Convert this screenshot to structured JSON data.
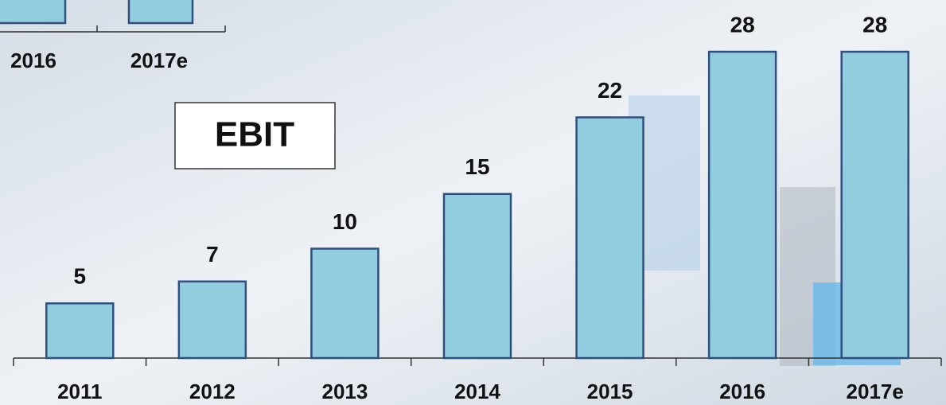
{
  "chart_data": [
    {
      "type": "bar",
      "title": "EBIT",
      "categories": [
        "2011",
        "2012",
        "2013",
        "2014",
        "2015",
        "2016",
        "2017e"
      ],
      "values": [
        5,
        7,
        10,
        15,
        22,
        28,
        28
      ],
      "color": "#92cddf",
      "edge_color": "#2f4f7f",
      "grid": false
    },
    {
      "type": "bar",
      "categories": [
        "2016",
        "2017e"
      ],
      "color": "#92cddf",
      "edge_color": "#2f4f7f"
    }
  ]
}
